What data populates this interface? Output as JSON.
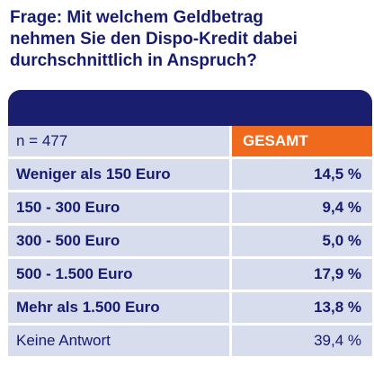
{
  "question": {
    "lines": [
      "Frage: Mit welchem Geldbetrag",
      "nehmen Sie den Dispo-Kredit dabei",
      "durchschnittlich in Anspruch?"
    ]
  },
  "table": {
    "sample_label": "n = 477",
    "total_label": "GESAMT",
    "rows": [
      {
        "label": "Weniger als 150 Euro",
        "value": "14,5 %"
      },
      {
        "label": "150 - 300 Euro",
        "value": "9,4 %"
      },
      {
        "label": "300 - 500 Euro",
        "value": "5,0 %"
      },
      {
        "label": "500 - 1.500 Euro",
        "value": "17,9 %"
      },
      {
        "label": "Mehr als 1.500 Euro",
        "value": "13,8 %"
      },
      {
        "label": "Keine Antwort",
        "value": "39,4 %"
      }
    ]
  },
  "colors": {
    "navy": "#1a1e6e",
    "row_background": "#d7dded",
    "accent_orange": "#ef6a1c"
  }
}
